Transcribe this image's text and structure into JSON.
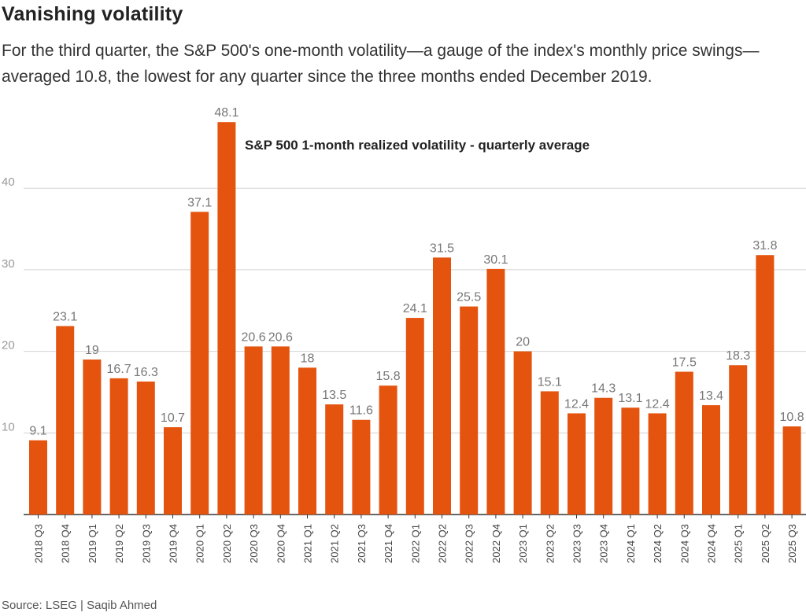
{
  "header": {
    "title": "Vanishing volatility",
    "subtitle": "For the third quarter, the S&P 500's one-month volatility—a gauge of the index's monthly price swings—averaged 10.8, the lowest for any quarter since the three months ended December 2019."
  },
  "footer": {
    "source": "Source: LSEG | Saqib Ahmed"
  },
  "chart_data": {
    "type": "bar",
    "title": "S&P 500 1-month realized volatility - quarterly average",
    "xlabel": "",
    "ylabel": "",
    "ylim": [
      0,
      50
    ],
    "yticks": [
      10,
      20,
      30,
      40
    ],
    "grid": true,
    "bar_color": "#e4540f",
    "categories": [
      "2018 Q3",
      "2018 Q4",
      "2019 Q1",
      "2019 Q2",
      "2019 Q3",
      "2019 Q4",
      "2020 Q1",
      "2020 Q2",
      "2020 Q3",
      "2020 Q4",
      "2021 Q1",
      "2021 Q2",
      "2021 Q3",
      "2021 Q4",
      "2022 Q1",
      "2022 Q2",
      "2022 Q3",
      "2022 Q4",
      "2023 Q1",
      "2023 Q2",
      "2023 Q3",
      "2023 Q4",
      "2024 Q1",
      "2024 Q2",
      "2024 Q3",
      "2024 Q4",
      "2025 Q1",
      "2025 Q2",
      "2025 Q3"
    ],
    "values": [
      9.1,
      23.1,
      19,
      16.7,
      16.3,
      10.7,
      37.1,
      48.1,
      20.6,
      20.6,
      18,
      13.5,
      11.6,
      15.8,
      24.1,
      31.5,
      25.5,
      30.1,
      20,
      15.1,
      12.4,
      14.3,
      13.1,
      12.4,
      17.5,
      13.4,
      18.3,
      31.8,
      10.8
    ],
    "labels": [
      "9.1",
      "23.1",
      "19",
      "16.7",
      "16.3",
      "10.7",
      "37.1",
      "48.1",
      "20.6",
      "20.6",
      "18",
      "13.5",
      "11.6",
      "15.8",
      "24.1",
      "31.5",
      "25.5",
      "30.1",
      "20",
      "15.1",
      "12.4",
      "14.3",
      "13.1",
      "12.4",
      "17.5",
      "13.4",
      "18.3",
      "31.8",
      "10.8"
    ]
  }
}
